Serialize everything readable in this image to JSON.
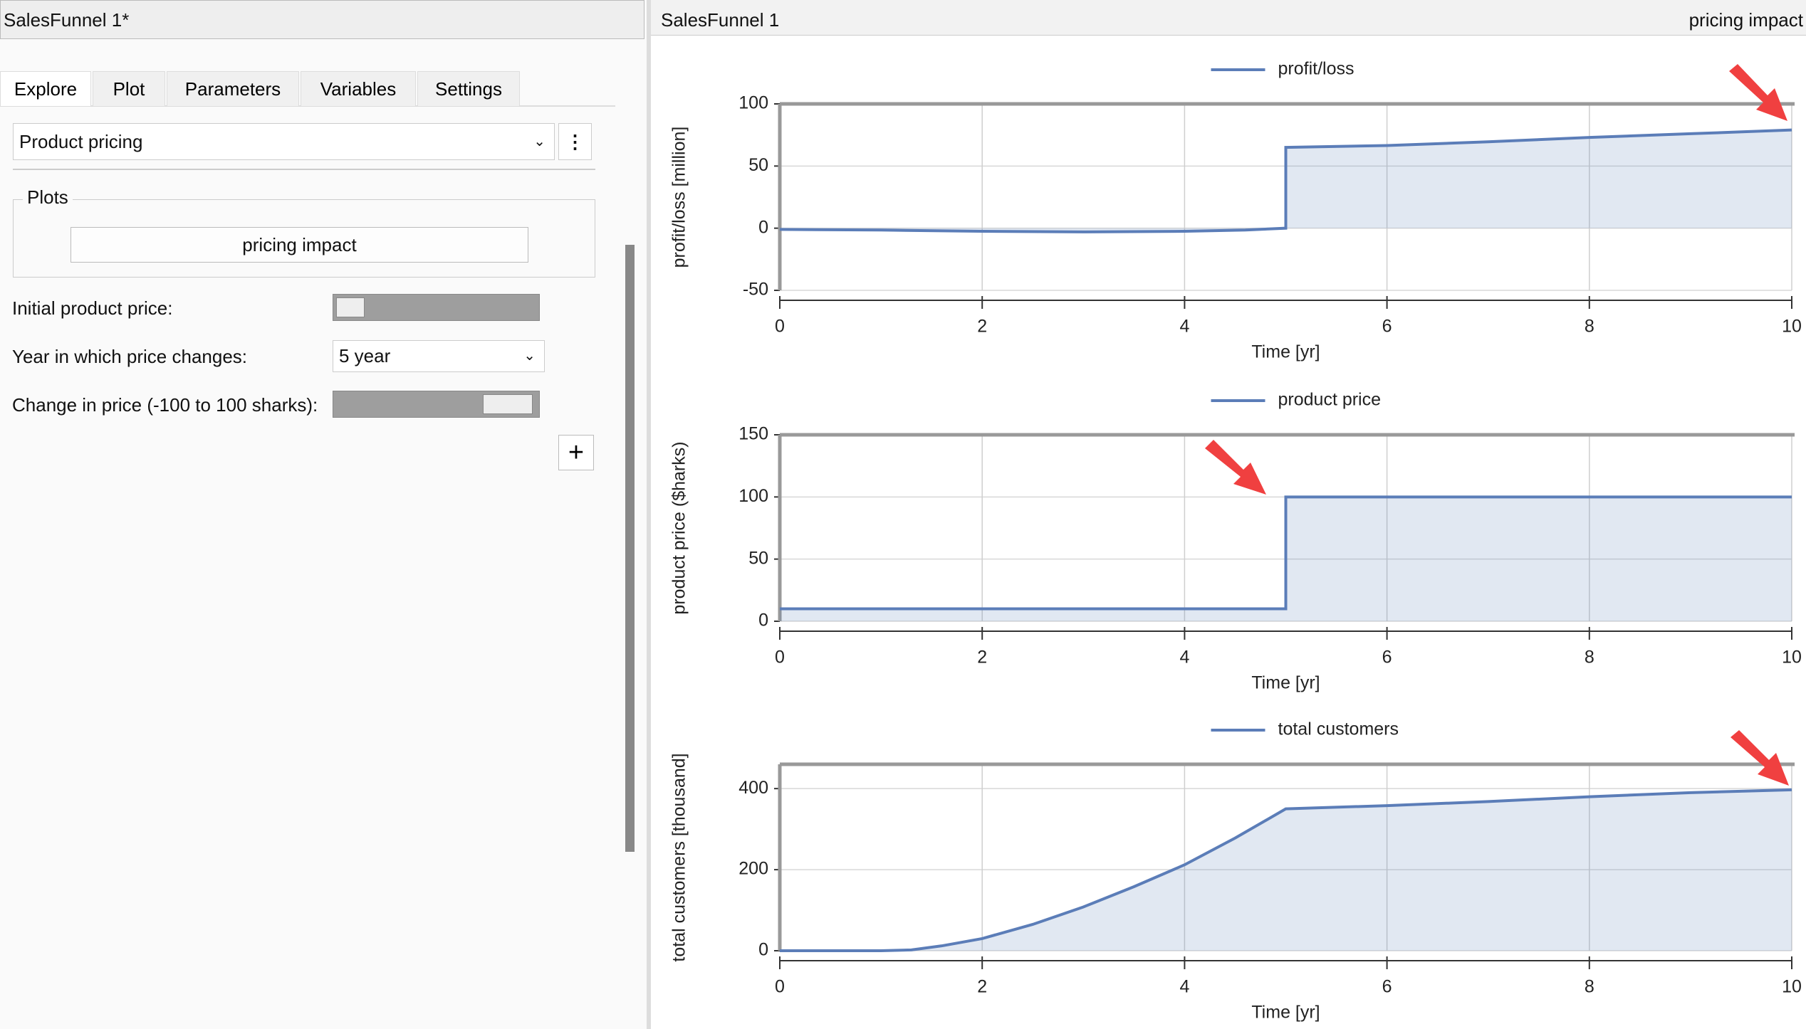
{
  "left_panel": {
    "title": "SalesFunnel 1*",
    "tabs": [
      "Explore",
      "Plot",
      "Parameters",
      "Variables",
      "Settings"
    ],
    "dropdown": "Product pricing",
    "plots_group": "Plots",
    "plot_button": "pricing impact",
    "params": [
      {
        "label": "Initial product price:"
      },
      {
        "label": "Year in which price changes:",
        "value": "5 year"
      },
      {
        "label": "Change in price (-100 to 100 sharks):"
      }
    ]
  },
  "right_panel": {
    "title": "SalesFunnel 1",
    "plot_name": "pricing impact"
  },
  "chart_data": [
    {
      "type": "line",
      "fill": true,
      "grid": true,
      "legend": "top",
      "xlabel": "Time [yr]",
      "ylabel": "profit/loss [million]",
      "x": [
        0,
        1,
        2,
        3,
        4,
        4.6,
        5,
        5,
        6,
        7,
        8,
        9,
        10
      ],
      "series": [
        {
          "name": "profit/loss",
          "color": "#5b7db8",
          "values": [
            -1,
            -1.5,
            -2.5,
            -3,
            -2.5,
            -1.5,
            0,
            65,
            66.5,
            69.5,
            73,
            76,
            79
          ]
        }
      ],
      "xlim": [
        0,
        10
      ],
      "xticks": [
        0,
        2,
        4,
        6,
        8,
        10
      ],
      "ylim": [
        -50,
        100
      ],
      "yticks": [
        -50,
        0,
        50,
        100
      ]
    },
    {
      "type": "line",
      "fill": true,
      "grid": true,
      "legend": "top",
      "xlabel": "Time [yr]",
      "ylabel": "product price ($harks)",
      "x": [
        0,
        5,
        5,
        10
      ],
      "series": [
        {
          "name": "product price",
          "color": "#5b7db8",
          "values": [
            10,
            10,
            100,
            100
          ]
        }
      ],
      "xlim": [
        0,
        10
      ],
      "xticks": [
        0,
        2,
        4,
        6,
        8,
        10
      ],
      "ylim": [
        0,
        150
      ],
      "yticks": [
        0,
        50,
        100,
        150
      ]
    },
    {
      "type": "line",
      "fill": true,
      "grid": true,
      "legend": "top",
      "xlabel": "Time [yr]",
      "ylabel": "total customers [thousand]",
      "x": [
        0,
        1,
        1.3,
        1.6,
        2,
        2.5,
        3,
        3.5,
        4,
        4.5,
        5,
        6,
        7,
        8,
        9,
        10
      ],
      "series": [
        {
          "name": "total customers",
          "color": "#5b7db8",
          "values": [
            0,
            0,
            2,
            12,
            30,
            65,
            108,
            158,
            212,
            278,
            350,
            358,
            368,
            380,
            390,
            397
          ]
        }
      ],
      "xlim": [
        0,
        10
      ],
      "xticks": [
        0,
        2,
        4,
        6,
        8,
        10
      ],
      "ylim": [
        0,
        460
      ],
      "yticks": [
        0,
        200,
        400
      ]
    }
  ]
}
